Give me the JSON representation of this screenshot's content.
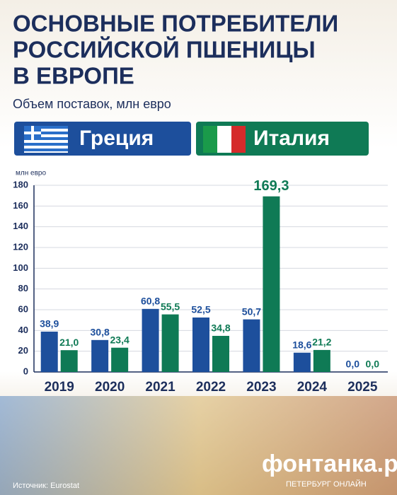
{
  "chart_data": {
    "type": "bar",
    "title": [
      "ОСНОВНЫЕ ПОТРЕБИТЕЛИ",
      "РОССИЙСКОЙ ПШЕНИЦЫ",
      "В ЕВРОПЕ"
    ],
    "subtitle": "Объем поставок, млн евро",
    "y_axis_label": "млн евро",
    "categories": [
      "2019",
      "2020",
      "2021",
      "2022",
      "2023",
      "2024",
      "2025"
    ],
    "series": [
      {
        "name": "Греция",
        "color": "#1d4f9c",
        "values": [
          38.9,
          30.8,
          60.8,
          52.5,
          50.7,
          18.6,
          0.0
        ],
        "value_labels": [
          "38,9",
          "30,8",
          "60,8",
          "52,5",
          "50,7",
          "18,6",
          "0,0"
        ]
      },
      {
        "name": "Италия",
        "color": "#0f7a55",
        "values": [
          21.0,
          23.4,
          55.5,
          34.8,
          169.3,
          21.2,
          0.0
        ],
        "value_labels": [
          "21,0",
          "23,4",
          "55,5",
          "34,8",
          "169,3",
          "21,2",
          "0,0"
        ]
      }
    ],
    "ylim": [
      0,
      180
    ],
    "yticks": [
      0,
      20,
      40,
      60,
      80,
      100,
      120,
      140,
      160,
      180
    ],
    "grid": true,
    "source": "Источник: Eurostat",
    "logo": "фонтанка.ру",
    "logo_subtitle": "ПЕТЕРБУРГ ОНЛАЙН"
  }
}
